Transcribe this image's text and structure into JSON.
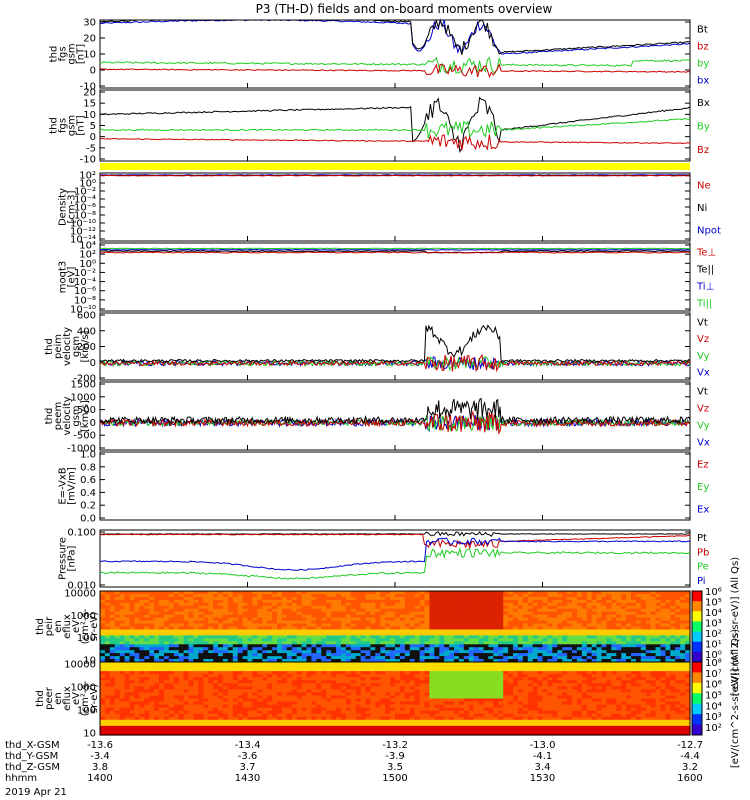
{
  "title": "P3 (TH-D) fields and on-board moments overview",
  "date_label": "2019 Apr 21",
  "colors": {
    "black": "#000000",
    "red": "#cc0000",
    "green": "#22cc22",
    "blue": "#0000cc",
    "yellow": "#ffff00"
  },
  "xaxis": {
    "ticks": [
      "1400",
      "1430",
      "1500",
      "1530",
      "1600"
    ],
    "rows": [
      {
        "label": "thd_X-GSM",
        "values": [
          "-13.6",
          "-13.4",
          "-13.2",
          "-13.0",
          "-12.7"
        ]
      },
      {
        "label": "thd_Y-GSM",
        "values": [
          "-3.4",
          "-3.6",
          "-3.9",
          "-4.1",
          "-4.4"
        ]
      },
      {
        "label": "thd_Z-GSM",
        "values": [
          "3.8",
          "3.7",
          "3.5",
          "3.4",
          "3.2"
        ]
      },
      {
        "label": "hhmm",
        "values": [
          "1400",
          "1430",
          "1500",
          "1530",
          "1600"
        ]
      }
    ]
  },
  "chart_data": [
    {
      "type": "line",
      "ylabel": [
        "thd",
        "fgs",
        "gsm",
        "[nT]"
      ],
      "yticks": [
        "30",
        "20",
        "10",
        "0",
        "-10"
      ],
      "ylim": [
        -10,
        30
      ],
      "legend": [
        {
          "name": "Bt",
          "color": "black"
        },
        {
          "name": "bz",
          "color": "red"
        },
        {
          "name": "by",
          "color": "green"
        },
        {
          "name": "bx",
          "color": "blue"
        }
      ]
    },
    {
      "type": "line",
      "ylabel": [
        "thd",
        "fgs",
        "gsm",
        "[nT]"
      ],
      "yticks": [
        "20",
        "15",
        "10",
        "5",
        "0",
        "-5",
        "-10"
      ],
      "ylim": [
        -12,
        20
      ],
      "legend": [
        {
          "name": "Bx",
          "color": "black"
        },
        {
          "name": "By",
          "color": "green"
        },
        {
          "name": "Bz",
          "color": "red"
        }
      ]
    },
    {
      "type": "line",
      "scale": "log",
      "ylabel": [
        "Density",
        "[cm-3]"
      ],
      "yticks": [
        "10²",
        "10⁰",
        "10⁻²",
        "10⁻⁴",
        "10⁻⁶",
        "10⁻⁸",
        "10⁻¹⁰",
        "10⁻¹²",
        "10⁻¹⁴"
      ],
      "legend": [
        {
          "name": "Ne",
          "color": "red"
        },
        {
          "name": "Ni",
          "color": "black"
        },
        {
          "name": "Npot",
          "color": "blue"
        }
      ]
    },
    {
      "type": "line",
      "scale": "log",
      "ylabel": [
        "moqt3",
        "[eV]"
      ],
      "yticks": [
        "10⁴",
        "10²",
        "10⁰",
        "10⁻²",
        "10⁻⁴",
        "10⁻⁶",
        "10⁻⁸",
        "10⁻¹⁰"
      ],
      "legend": [
        {
          "name": "Te⊥",
          "color": "red"
        },
        {
          "name": "Te||",
          "color": "black"
        },
        {
          "name": "Ti⊥",
          "color": "blue"
        },
        {
          "name": "Ti||",
          "color": "green"
        }
      ]
    },
    {
      "type": "line",
      "ylabel": [
        "thd",
        "peim",
        "velocity",
        "gsm",
        "[km/s]"
      ],
      "yticks": [
        "600",
        "400",
        "200",
        "0",
        "-200"
      ],
      "ylim": [
        -200,
        600
      ],
      "legend": [
        {
          "name": "Vt",
          "color": "black"
        },
        {
          "name": "Vz",
          "color": "red"
        },
        {
          "name": "Vy",
          "color": "green"
        },
        {
          "name": "Vx",
          "color": "blue"
        }
      ]
    },
    {
      "type": "line",
      "ylabel": [
        "thd",
        "peem",
        "velocity",
        "gsm",
        "[km/s]"
      ],
      "yticks": [
        "1500",
        "1000",
        "500",
        "0",
        "-500",
        "-1000"
      ],
      "ylim": [
        -1000,
        1500
      ],
      "legend": [
        {
          "name": "Vt",
          "color": "black"
        },
        {
          "name": "Vz",
          "color": "red"
        },
        {
          "name": "Vy",
          "color": "green"
        },
        {
          "name": "Vx",
          "color": "blue"
        }
      ]
    },
    {
      "type": "line",
      "ylabel": [
        "E=-VxB",
        "[mV/m]"
      ],
      "yticks": [
        "1.0",
        "0.8",
        "0.6",
        "0.4",
        "0.2",
        "0.0"
      ],
      "ylim": [
        0,
        1
      ],
      "legend": [
        {
          "name": "Ez",
          "color": "red"
        },
        {
          "name": "Ey",
          "color": "green"
        },
        {
          "name": "Ex",
          "color": "blue"
        }
      ]
    },
    {
      "type": "line",
      "scale": "log",
      "ylabel": [
        "Pressure",
        "[nPa]"
      ],
      "yticks": [
        "0.100",
        "0.010"
      ],
      "legend": [
        {
          "name": "Pt",
          "color": "black"
        },
        {
          "name": "Pb",
          "color": "red"
        },
        {
          "name": "Pe",
          "color": "green"
        },
        {
          "name": "Pi",
          "color": "blue"
        }
      ]
    },
    {
      "type": "heatmap",
      "ylabel": [
        "thd",
        "peir",
        "en",
        "eflux",
        "eV",
        "(cm²-s-",
        "sr-eV)"
      ],
      "yticks": [
        "10000",
        "1000",
        "100",
        "10"
      ],
      "colorbar": {
        "label": "[eV/(cm^2-s-sr-eV)] (All Qs)",
        "ticks": [
          "10⁶",
          "10⁵",
          "10⁴",
          "10³",
          "10²",
          "10¹",
          "10⁰"
        ]
      }
    },
    {
      "type": "heatmap",
      "ylabel": [
        "thd",
        "peer",
        "en",
        "eflux",
        "eV",
        "(cm²-s-",
        "sr-eV)"
      ],
      "yticks": [
        "10000",
        "1000",
        "100",
        "10"
      ],
      "colorbar": {
        "label": "[eV/(cm^2-s-sr-eV)] (All Qs)",
        "ticks": [
          "10⁸",
          "10⁷",
          "10⁶",
          "10⁵",
          "10⁴",
          "10³",
          "10²"
        ]
      }
    }
  ]
}
